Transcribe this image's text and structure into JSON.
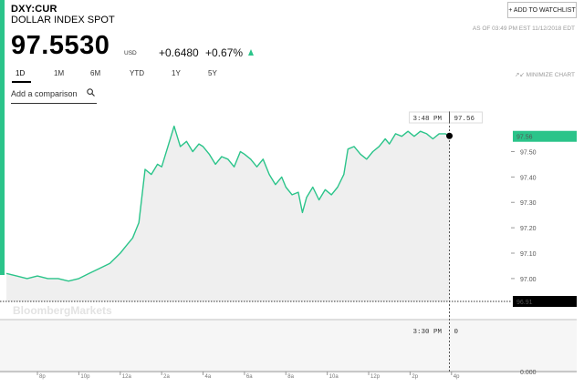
{
  "header": {
    "ticker": "DXY:CUR",
    "name": "DOLLAR INDEX SPOT",
    "watchlist_label": "+ ADD TO WATCHLIST",
    "as_of": "AS OF 03:49 PM EST 11/12/2018 EDT",
    "price": "97.5530",
    "currency": "USD",
    "change": "+0.6480",
    "change_pct": "+0.67%",
    "direction": "up"
  },
  "tabs": [
    "1D",
    "1M",
    "6M",
    "YTD",
    "1Y",
    "5Y"
  ],
  "active_tab": "1D",
  "minimize_label": "MINIMIZE CHART",
  "compare": {
    "placeholder": "Add a comparison"
  },
  "colors": {
    "accent": "#2bc48a",
    "line": "#2bc48a",
    "fill": "#efefef",
    "label_bg": "#000000"
  },
  "watermark": "BloombergMarkets",
  "chart_data": {
    "type": "area",
    "title": "",
    "price_axis": {
      "ticks": [
        "97.50",
        "97.40",
        "97.30",
        "97.20",
        "97.10",
        "97.00"
      ],
      "tick_values": [
        97.5,
        97.4,
        97.3,
        97.2,
        97.1,
        97.0
      ],
      "ylim": [
        96.91,
        97.62
      ]
    },
    "cursor": {
      "time": "3:48 PM",
      "value": "97.56"
    },
    "last_price_label": "97.56",
    "baseline_label": "96.91",
    "volume_panel": {
      "cursor_time": "3:30 PM",
      "cursor_value": "0",
      "axis_label": "0.000"
    },
    "x_ticks": [
      "8p",
      "10p",
      "12a",
      "2a",
      "4a",
      "6a",
      "8a",
      "10a",
      "12p",
      "2p",
      "4p"
    ],
    "x_tick_hours": [
      20,
      22,
      24,
      26,
      28,
      30,
      32,
      34,
      36,
      38,
      40
    ],
    "xlim": [
      18.5,
      41.2
    ],
    "series": [
      {
        "x": [
          18.5,
          19.0,
          19.5,
          20.0,
          20.5,
          21.0,
          21.5,
          22.0,
          22.5,
          23.0,
          23.5,
          24.0,
          24.3,
          24.6,
          24.9,
          25.2,
          25.5,
          25.8,
          26.0,
          26.3,
          26.6,
          26.9,
          27.2,
          27.5,
          27.8,
          28.0,
          28.3,
          28.6,
          28.9,
          29.2,
          29.5,
          29.8,
          30.0,
          30.3,
          30.6,
          30.9,
          31.2,
          31.5,
          31.8,
          32.0,
          32.3,
          32.6,
          32.8,
          33.0,
          33.3,
          33.6,
          33.9,
          34.2,
          34.5,
          34.8,
          35.0,
          35.3,
          35.6,
          35.9,
          36.2,
          36.5,
          36.8,
          37.0,
          37.3,
          37.6,
          37.9,
          38.2,
          38.5,
          38.8,
          39.1,
          39.4,
          39.7,
          39.9
        ],
        "y": [
          97.02,
          97.01,
          97.0,
          97.01,
          97.0,
          97.0,
          96.99,
          97.0,
          97.02,
          97.04,
          97.06,
          97.1,
          97.13,
          97.16,
          97.22,
          97.43,
          97.41,
          97.45,
          97.44,
          97.52,
          97.6,
          97.52,
          97.54,
          97.5,
          97.53,
          97.52,
          97.49,
          97.45,
          97.48,
          97.47,
          97.44,
          97.5,
          97.49,
          97.47,
          97.44,
          97.47,
          97.41,
          97.37,
          97.4,
          97.36,
          97.33,
          97.34,
          97.26,
          97.32,
          97.36,
          97.31,
          97.35,
          97.33,
          97.36,
          97.41,
          97.51,
          97.52,
          97.49,
          97.47,
          97.5,
          97.52,
          97.55,
          97.53,
          97.57,
          97.56,
          97.58,
          97.56,
          97.58,
          97.57,
          97.55,
          97.57,
          97.57,
          97.56
        ]
      }
    ]
  }
}
